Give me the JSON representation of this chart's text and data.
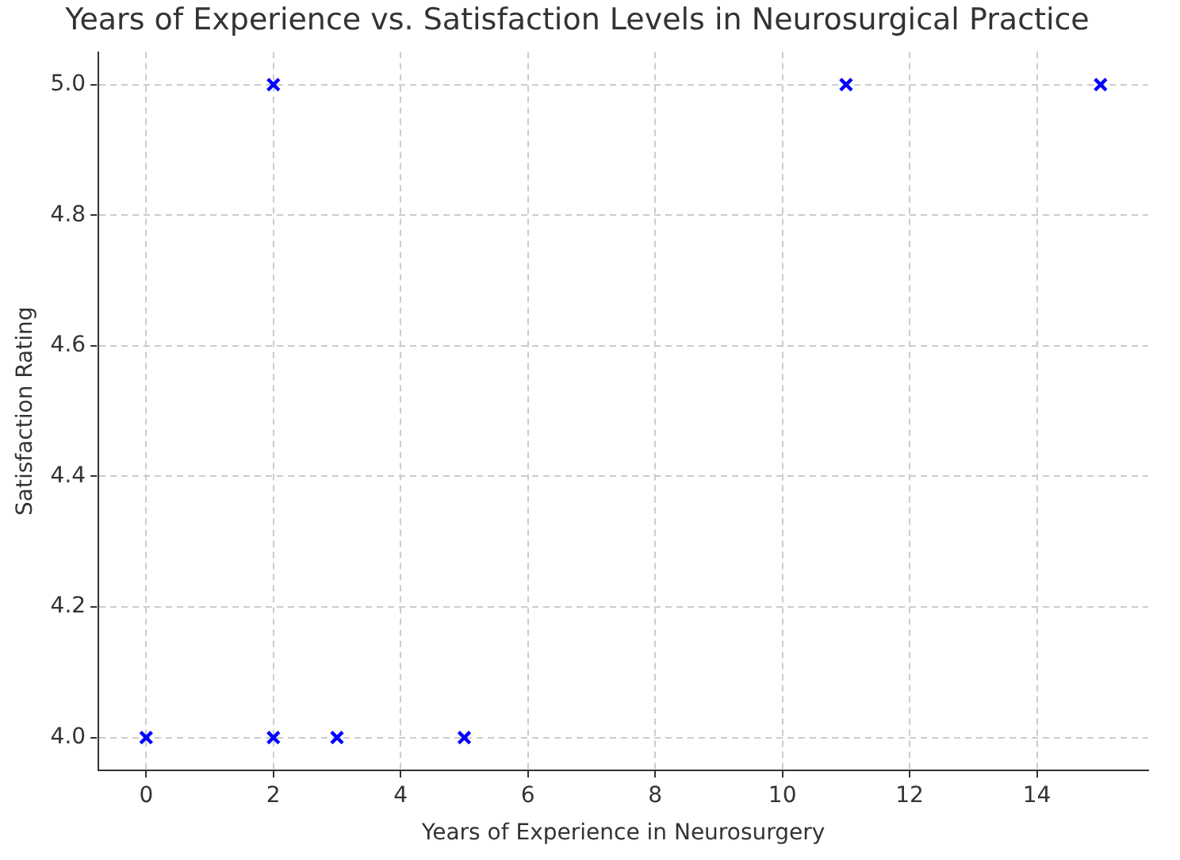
{
  "chart_data": {
    "type": "scatter",
    "title": "Years of Experience vs. Satisfaction Levels in Neurosurgical Practice",
    "xlabel": "Years of Experience in Neurosurgery",
    "ylabel": "Satisfaction Rating",
    "x": [
      0,
      2,
      2,
      3,
      5,
      11,
      15
    ],
    "series": [
      {
        "color": "#0000ff",
        "values": [
          4,
          5,
          4,
          4,
          4,
          5,
          5
        ]
      }
    ],
    "xlim": [
      -0.75,
      15.75
    ],
    "xticks": [
      0,
      2,
      4,
      6,
      8,
      10,
      12,
      14
    ],
    "ylim": [
      3.95,
      5.05
    ],
    "yticks": [
      {
        "value": 4,
        "label": "4.0"
      },
      {
        "value": 4.2,
        "label": "4.2"
      },
      {
        "value": 4.4,
        "label": "4.4"
      },
      {
        "value": 4.6,
        "label": "4.6"
      },
      {
        "value": 4.8,
        "label": "4.8"
      },
      {
        "value": 5,
        "label": "5.0"
      }
    ],
    "grid": true,
    "marker": "cross",
    "legend": false
  }
}
